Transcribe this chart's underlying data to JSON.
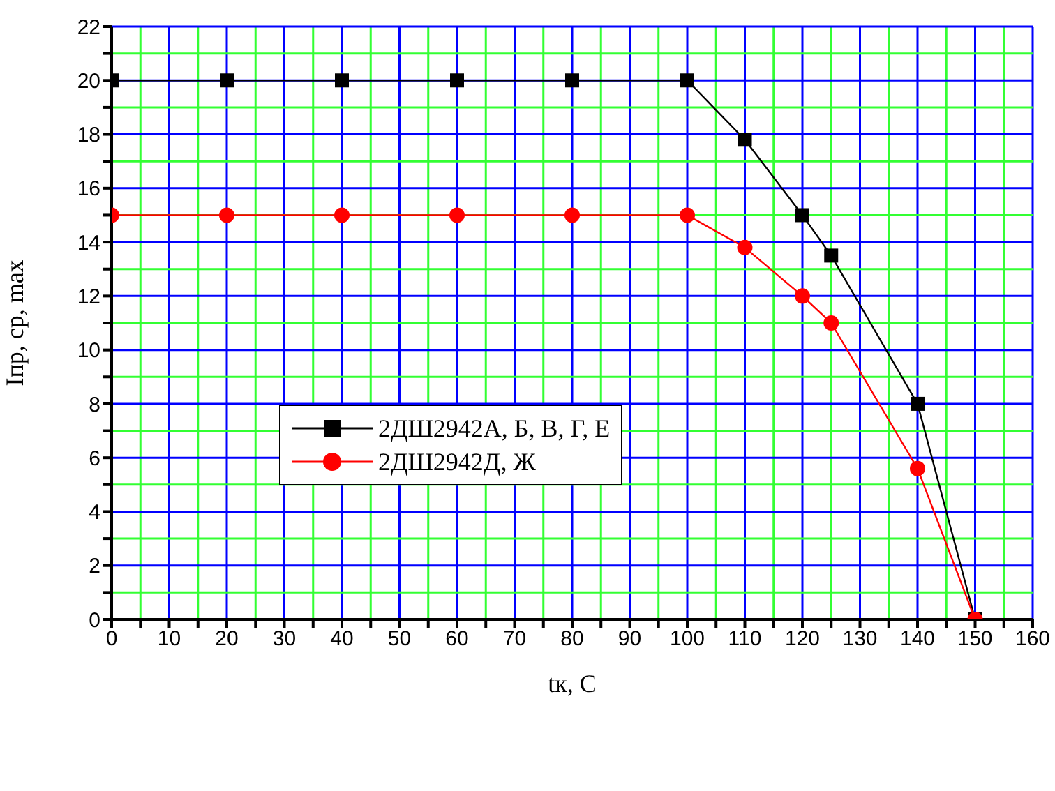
{
  "chart_data": {
    "type": "line",
    "xlabel": "tк, С",
    "ylabel": "Iпр, ср, max",
    "xlim": [
      0,
      160
    ],
    "ylim": [
      0,
      22
    ],
    "xticks": [
      0,
      {
        "value": 5,
        "label": null
      },
      10,
      {
        "value": 15,
        "label": null
      },
      20,
      {
        "value": 25,
        "label": null
      },
      30,
      {
        "value": 35,
        "label": null
      },
      40,
      {
        "value": 45,
        "label": null
      },
      50,
      {
        "value": 55,
        "label": null
      },
      60,
      {
        "value": 65,
        "label": null
      },
      70,
      {
        "value": 75,
        "label": null
      },
      80,
      {
        "value": 85,
        "label": null
      },
      90,
      {
        "value": 95,
        "label": null
      },
      100,
      {
        "value": 105,
        "label": null
      },
      110,
      {
        "value": 115,
        "label": null
      },
      120,
      {
        "value": 125,
        "label": null
      },
      130,
      {
        "value": 135,
        "label": null
      },
      140,
      {
        "value": 145,
        "label": null
      },
      150,
      {
        "value": 155,
        "label": null
      },
      160
    ],
    "yticks": [
      0,
      {
        "value": 1,
        "label": null
      },
      2,
      {
        "value": 3,
        "label": null
      },
      4,
      {
        "value": 5,
        "label": null
      },
      6,
      {
        "value": 7,
        "label": null
      },
      8,
      {
        "value": 9,
        "label": null
      },
      10,
      {
        "value": 11,
        "label": null
      },
      12,
      {
        "value": 13,
        "label": null
      },
      14,
      {
        "value": 15,
        "label": null
      },
      16,
      {
        "value": 17,
        "label": null
      },
      18,
      {
        "value": 19,
        "label": null
      },
      20,
      {
        "value": 21,
        "label": null
      },
      22
    ],
    "grid": true,
    "legend": "left",
    "line_style": "solid",
    "series": [
      {
        "name": "2ДШ2942А, Б, В, Г, Е",
        "color": "#000000",
        "marker": "square",
        "x": [
          0,
          20,
          40,
          60,
          80,
          100,
          110,
          120,
          125,
          140,
          150
        ],
        "values": [
          20,
          20,
          20,
          20,
          20,
          20,
          17.8,
          15,
          13.5,
          8,
          0
        ]
      },
      {
        "name": "2ДШ2942Д, Ж",
        "color": "#ff0000",
        "marker": "circle",
        "x": [
          0,
          20,
          40,
          60,
          80,
          100,
          110,
          120,
          125,
          140,
          150
        ],
        "values": [
          15,
          15,
          15,
          15,
          15,
          15,
          13.8,
          12,
          11,
          5.6,
          0
        ]
      }
    ]
  }
}
